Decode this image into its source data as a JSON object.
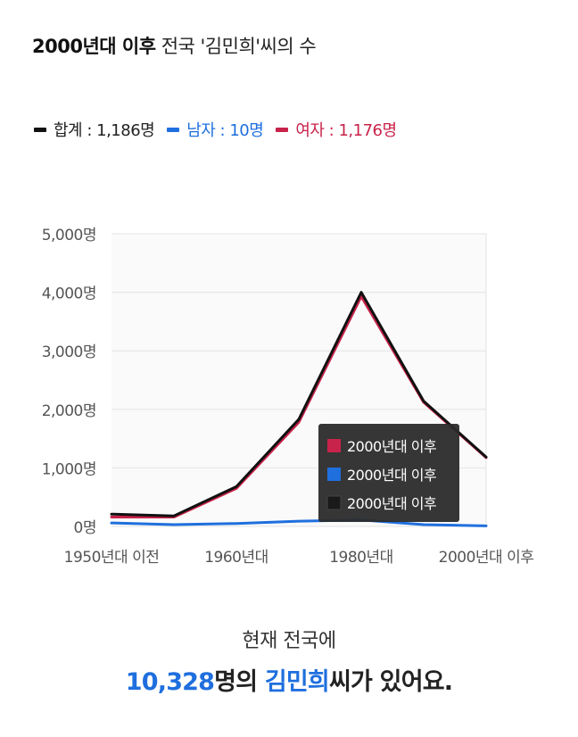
{
  "colors": {
    "total": "#111111",
    "male": "#1f6fde",
    "female": "#c8234a"
  },
  "header": {
    "title_bold": "2000년대 이후",
    "title_rest": " 전국 '김민희'씨의 수"
  },
  "legend": [
    {
      "key": "total",
      "label": "합계 : 1,186명"
    },
    {
      "key": "male",
      "label": "남자 : 10명"
    },
    {
      "key": "female",
      "label": "여자 : 1,176명"
    }
  ],
  "tooltip": {
    "items": [
      {
        "key": "female",
        "label": "2000년대 이후"
      },
      {
        "key": "male",
        "label": "2000년대 이후"
      },
      {
        "key": "total",
        "label": "2000년대 이후"
      }
    ]
  },
  "summary": {
    "line1": "현재 전국에",
    "count": "10,328",
    "mid": "명의 ",
    "name": "김민희",
    "end": "씨가 있어요."
  },
  "chart_data": {
    "type": "line",
    "categories": [
      "1950년대 이전",
      "",
      "1960년대",
      "",
      "1980년대",
      "",
      "2000년대 이후"
    ],
    "category_labels_shown": [
      "1950년대 이전",
      "1960년대",
      "1980년대",
      "2000년대 이후"
    ],
    "y_ticks": [
      "0명",
      "1,000명",
      "2,000명",
      "3,000명",
      "4,000명",
      "5,000명"
    ],
    "ylim": [
      0,
      5000
    ],
    "series": [
      {
        "name": "합계",
        "key": "total",
        "values": [
          210,
          180,
          680,
          1830,
          4000,
          2140,
          1186
        ]
      },
      {
        "name": "여자",
        "key": "female",
        "values": [
          160,
          160,
          650,
          1780,
          3930,
          2120,
          1176
        ]
      },
      {
        "name": "남자",
        "key": "male",
        "values": [
          60,
          30,
          50,
          90,
          110,
          30,
          10
        ]
      }
    ],
    "grid": true,
    "legend_position": "top-left"
  }
}
